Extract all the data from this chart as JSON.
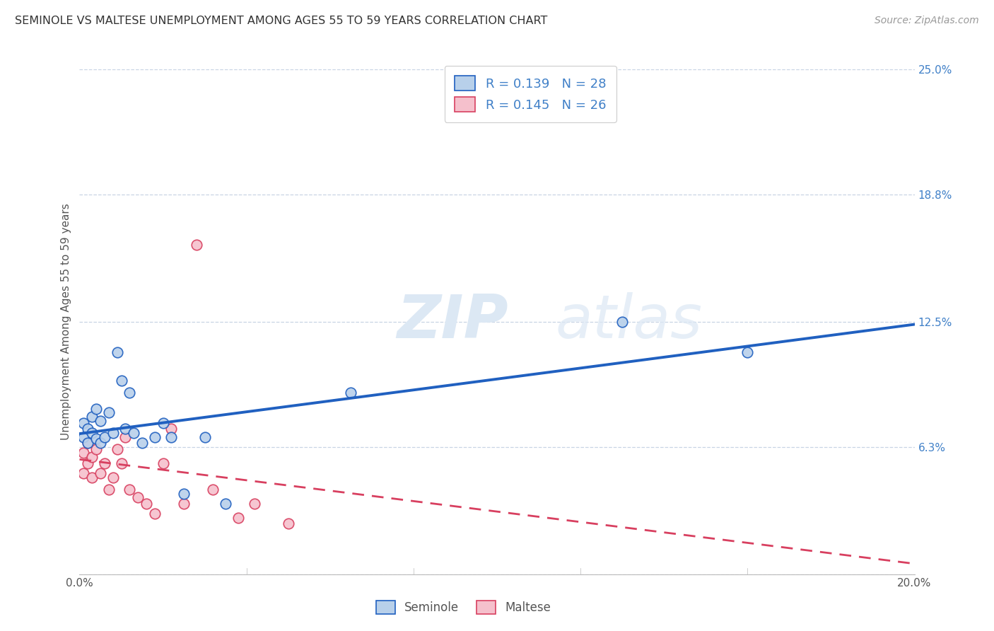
{
  "title": "SEMINOLE VS MALTESE UNEMPLOYMENT AMONG AGES 55 TO 59 YEARS CORRELATION CHART",
  "source": "Source: ZipAtlas.com",
  "ylabel": "Unemployment Among Ages 55 to 59 years",
  "xlim": [
    0.0,
    0.2
  ],
  "ylim": [
    0.0,
    0.25
  ],
  "ytick_labels_right": [
    "25.0%",
    "18.8%",
    "12.5%",
    "6.3%"
  ],
  "ytick_values_right": [
    0.25,
    0.188,
    0.125,
    0.063
  ],
  "seminole_R": 0.139,
  "seminole_N": 28,
  "maltese_R": 0.145,
  "maltese_N": 26,
  "seminole_color": "#b8d0ea",
  "seminole_line_color": "#2060c0",
  "maltese_color": "#f5c0cc",
  "maltese_line_color": "#d84060",
  "background_color": "#ffffff",
  "grid_color": "#c8d4e4",
  "watermark_zip": "ZIP",
  "watermark_atlas": "atlas",
  "seminole_x": [
    0.001,
    0.001,
    0.002,
    0.002,
    0.003,
    0.003,
    0.004,
    0.004,
    0.005,
    0.005,
    0.006,
    0.007,
    0.008,
    0.009,
    0.01,
    0.011,
    0.012,
    0.013,
    0.015,
    0.018,
    0.02,
    0.022,
    0.025,
    0.03,
    0.035,
    0.065,
    0.13,
    0.16
  ],
  "seminole_y": [
    0.068,
    0.075,
    0.065,
    0.072,
    0.07,
    0.078,
    0.067,
    0.082,
    0.065,
    0.076,
    0.068,
    0.08,
    0.07,
    0.11,
    0.096,
    0.072,
    0.09,
    0.07,
    0.065,
    0.068,
    0.075,
    0.068,
    0.04,
    0.068,
    0.035,
    0.09,
    0.125,
    0.11
  ],
  "maltese_x": [
    0.001,
    0.001,
    0.002,
    0.002,
    0.003,
    0.003,
    0.004,
    0.005,
    0.006,
    0.007,
    0.008,
    0.009,
    0.01,
    0.011,
    0.012,
    0.014,
    0.016,
    0.018,
    0.02,
    0.022,
    0.025,
    0.028,
    0.032,
    0.038,
    0.042,
    0.05
  ],
  "maltese_y": [
    0.06,
    0.05,
    0.065,
    0.055,
    0.058,
    0.048,
    0.062,
    0.05,
    0.055,
    0.042,
    0.048,
    0.062,
    0.055,
    0.068,
    0.042,
    0.038,
    0.035,
    0.03,
    0.055,
    0.072,
    0.035,
    0.163,
    0.042,
    0.028,
    0.035,
    0.025
  ]
}
